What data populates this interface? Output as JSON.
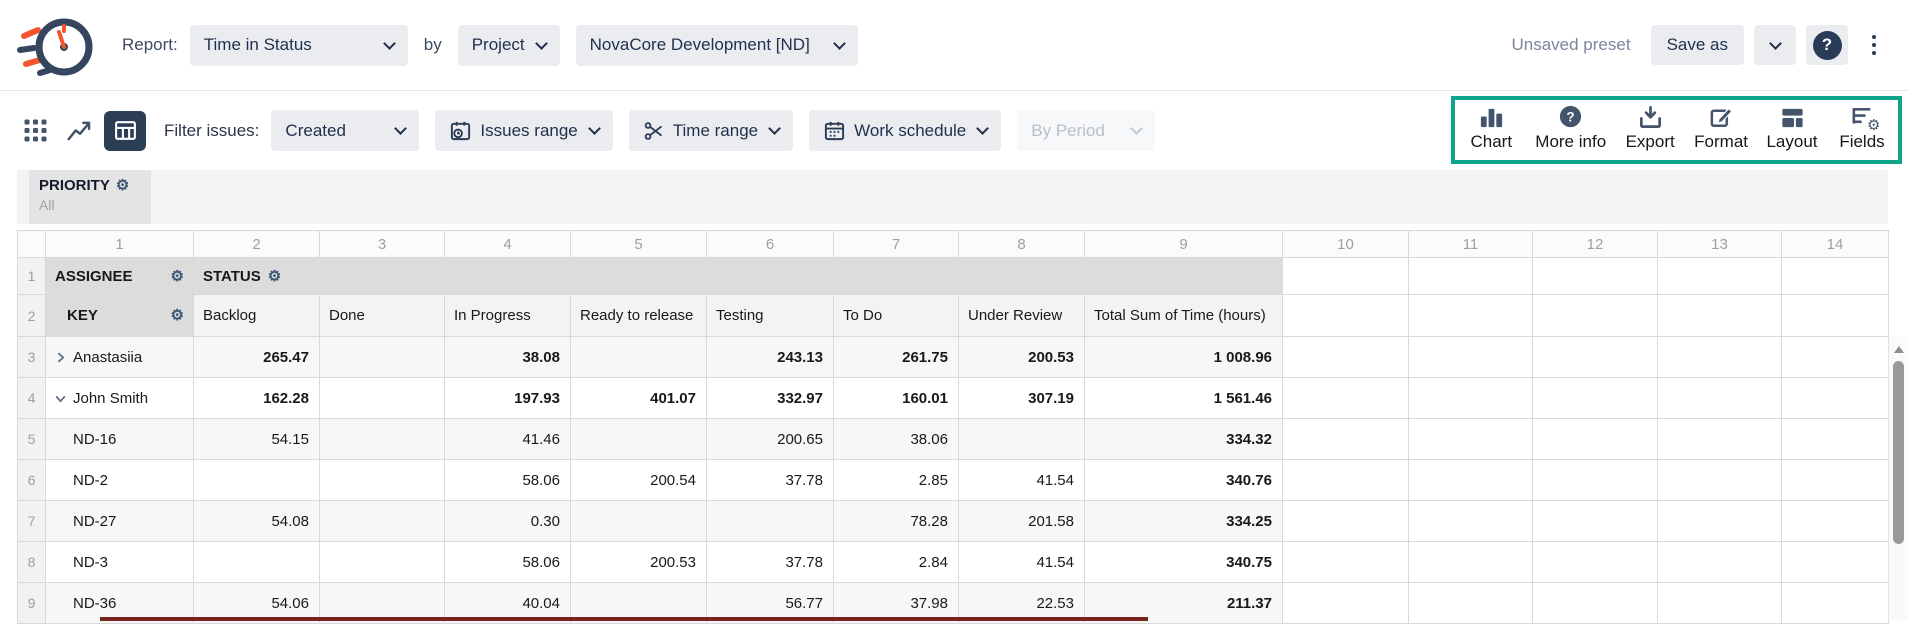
{
  "header": {
    "report_label": "Report:",
    "report_type": "Time in Status",
    "by_label": "by",
    "group_by": "Project",
    "project": "NovaCore Development [ND]",
    "preset_status": "Unsaved preset",
    "save_as_label": "Save as"
  },
  "toolbar": {
    "filter_label": "Filter issues:",
    "filter_value": "Created",
    "issues_range_label": "Issues range",
    "time_range_label": "Time range",
    "work_schedule_label": "Work schedule",
    "by_period_label": "By Period",
    "actions": [
      {
        "name": "chart",
        "label": "Chart"
      },
      {
        "name": "more-info",
        "label": "More info"
      },
      {
        "name": "export",
        "label": "Export"
      },
      {
        "name": "format",
        "label": "Format"
      },
      {
        "name": "layout",
        "label": "Layout"
      },
      {
        "name": "fields",
        "label": "Fields"
      }
    ]
  },
  "filter_panel": {
    "title": "PRIORITY",
    "value": "All"
  },
  "icons": {
    "gear": "⚙",
    "question_mark": "?"
  },
  "colors": {
    "accent_green": "#0EA58C",
    "navy_text": "#1F304C",
    "icon_slate": "#44546A",
    "selected_view_bg": "#2C3E54",
    "header_gray": "#DCDCDC",
    "row_alt": "#F7F7F7",
    "red_line": "#7A2420"
  },
  "table": {
    "column_numbers": [
      "1",
      "2",
      "3",
      "4",
      "5",
      "6",
      "7",
      "8",
      "9",
      "10",
      "11",
      "12",
      "13",
      "14"
    ],
    "header_row_numbers": [
      "1",
      "2"
    ],
    "headers": {
      "assignee": "ASSIGNEE",
      "status": "STATUS",
      "key": "KEY"
    },
    "status_columns": [
      "Backlog",
      "Done",
      "In Progress",
      "Ready to release",
      "Testing",
      "To Do",
      "Under Review",
      "Total Sum of Time (hours)"
    ],
    "rows": [
      {
        "num": "3",
        "label": "Anastasiia",
        "type": "group",
        "expanded": false,
        "values": [
          "265.47",
          "",
          "38.08",
          "",
          "243.13",
          "261.75",
          "200.53",
          "1 008.96"
        ]
      },
      {
        "num": "4",
        "label": "John Smith",
        "type": "group",
        "expanded": true,
        "values": [
          "162.28",
          "",
          "197.93",
          "401.07",
          "332.97",
          "160.01",
          "307.19",
          "1 561.46"
        ]
      },
      {
        "num": "5",
        "label": "ND-16",
        "type": "issue",
        "expanded": null,
        "values": [
          "54.15",
          "",
          "41.46",
          "",
          "200.65",
          "38.06",
          "",
          "334.32"
        ]
      },
      {
        "num": "6",
        "label": "ND-2",
        "type": "issue",
        "expanded": null,
        "values": [
          "",
          "",
          "58.06",
          "200.54",
          "37.78",
          "2.85",
          "41.54",
          "340.76"
        ]
      },
      {
        "num": "7",
        "label": "ND-27",
        "type": "issue",
        "expanded": null,
        "values": [
          "54.08",
          "",
          "0.30",
          "",
          "",
          "78.28",
          "201.58",
          "334.25"
        ]
      },
      {
        "num": "8",
        "label": "ND-3",
        "type": "issue",
        "expanded": null,
        "values": [
          "",
          "",
          "58.06",
          "200.53",
          "37.78",
          "2.84",
          "41.54",
          "340.75"
        ]
      },
      {
        "num": "9",
        "label": "ND-36",
        "type": "issue",
        "expanded": null,
        "values": [
          "54.06",
          "",
          "40.04",
          "",
          "56.77",
          "37.98",
          "22.53",
          "211.37"
        ]
      }
    ]
  }
}
